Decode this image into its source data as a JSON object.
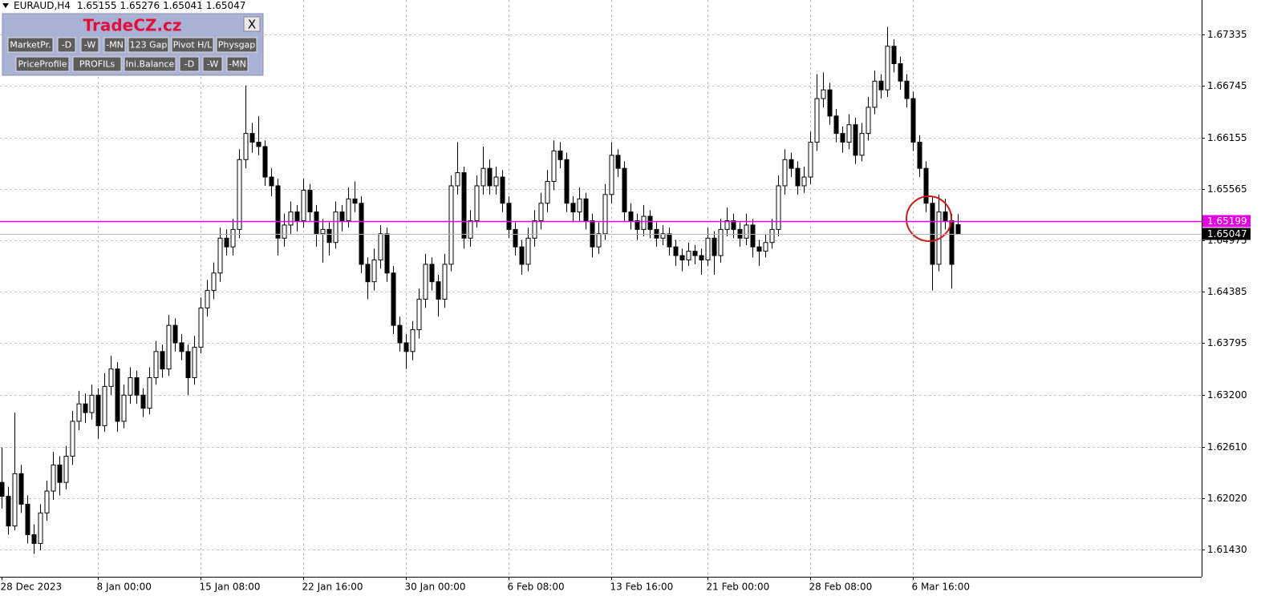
{
  "chart_data": {
    "type": "candlestick",
    "symbol": "EURAUD,H4",
    "ylim": [
      1.61118,
      1.6773
    ],
    "yticks": [
      1.67335,
      1.66745,
      1.66155,
      1.65565,
      1.64975,
      1.64385,
      1.63795,
      {
        "value": 1.632,
        "label": "1.63200"
      },
      {
        "value": 1.6261,
        "label": "1.62610"
      },
      {
        "value": 1.6202,
        "label": "1.62020"
      },
      {
        "value": 1.6143,
        "label": "1.61430"
      }
    ],
    "xticks": [
      {
        "value": 0,
        "label": "28 Dec 2023"
      },
      {
        "value": 15,
        "label": "8 Jan 00:00"
      },
      {
        "value": 31,
        "label": "15 Jan 08:00"
      },
      {
        "value": 47,
        "label": "22 Jan 16:00"
      },
      {
        "value": 63,
        "label": "30 Jan 00:00"
      },
      {
        "value": 79,
        "label": "6 Feb 08:00"
      },
      {
        "value": 95,
        "label": "13 Feb 16:00"
      },
      {
        "value": 110,
        "label": "21 Feb 00:00"
      },
      {
        "value": 126,
        "label": "28 Feb 08:00"
      },
      {
        "value": 142,
        "label": "6 Mar 16:00"
      }
    ],
    "grid": true,
    "up_color": "#ffffff",
    "down_color": "#000000",
    "hline": {
      "value": 1.65199,
      "color": "#e600e6"
    },
    "ohlc": [
      [
        1.622,
        1.626,
        1.619,
        1.6204
      ],
      [
        1.6204,
        1.6215,
        1.616,
        1.617
      ],
      [
        1.617,
        1.63,
        1.6165,
        1.623
      ],
      [
        1.623,
        1.624,
        1.6185,
        1.6195
      ],
      [
        1.6195,
        1.6205,
        1.615,
        1.616
      ],
      [
        1.616,
        1.6172,
        1.6138,
        1.615
      ],
      [
        1.615,
        1.6195,
        1.6142,
        1.6185
      ],
      [
        1.6185,
        1.6222,
        1.6176,
        1.621
      ],
      [
        1.621,
        1.6255,
        1.62,
        1.624
      ],
      [
        1.624,
        1.625,
        1.6205,
        1.622
      ],
      [
        1.622,
        1.6262,
        1.6212,
        1.625
      ],
      [
        1.625,
        1.6302,
        1.624,
        1.629
      ],
      [
        1.629,
        1.6325,
        1.628,
        1.631
      ],
      [
        1.631,
        1.6322,
        1.6288,
        1.63
      ],
      [
        1.63,
        1.6332,
        1.6292,
        1.632
      ],
      [
        1.632,
        1.6328,
        1.627,
        1.6285
      ],
      [
        1.6285,
        1.6345,
        1.6278,
        1.633
      ],
      [
        1.633,
        1.6365,
        1.632,
        1.635
      ],
      [
        1.635,
        1.6358,
        1.6278,
        1.629
      ],
      [
        1.629,
        1.6332,
        1.6282,
        1.632
      ],
      [
        1.632,
        1.6352,
        1.631,
        1.634
      ],
      [
        1.634,
        1.6348,
        1.631,
        1.632
      ],
      [
        1.632,
        1.6328,
        1.6295,
        1.6305
      ],
      [
        1.6305,
        1.6352,
        1.6298,
        1.634
      ],
      [
        1.634,
        1.6382,
        1.6332,
        1.637
      ],
      [
        1.637,
        1.6378,
        1.634,
        1.635
      ],
      [
        1.635,
        1.6412,
        1.6342,
        1.64
      ],
      [
        1.64,
        1.6408,
        1.637,
        1.638
      ],
      [
        1.638,
        1.639,
        1.636,
        1.637
      ],
      [
        1.637,
        1.6378,
        1.632,
        1.634
      ],
      [
        1.634,
        1.6388,
        1.6332,
        1.6375
      ],
      [
        1.6375,
        1.6432,
        1.6368,
        1.642
      ],
      [
        1.642,
        1.6452,
        1.641,
        1.644
      ],
      [
        1.644,
        1.6472,
        1.643,
        1.646
      ],
      [
        1.646,
        1.6512,
        1.645,
        1.65
      ],
      [
        1.65,
        1.651,
        1.648,
        1.649
      ],
      [
        1.649,
        1.6522,
        1.648,
        1.651
      ],
      [
        1.651,
        1.6602,
        1.65,
        1.659
      ],
      [
        1.659,
        1.6675,
        1.658,
        1.662
      ],
      [
        1.662,
        1.6632,
        1.6598,
        1.661
      ],
      [
        1.661,
        1.664,
        1.6595,
        1.6605
      ],
      [
        1.6605,
        1.6612,
        1.656,
        1.657
      ],
      [
        1.657,
        1.658,
        1.6548,
        1.656
      ],
      [
        1.656,
        1.6568,
        1.648,
        1.65
      ],
      [
        1.65,
        1.6528,
        1.649,
        1.6515
      ],
      [
        1.6515,
        1.6542,
        1.6505,
        1.653
      ],
      [
        1.653,
        1.6538,
        1.6508,
        1.652
      ],
      [
        1.652,
        1.6568,
        1.6512,
        1.6555
      ],
      [
        1.6555,
        1.6562,
        1.652,
        1.653
      ],
      [
        1.653,
        1.6538,
        1.649,
        1.6505
      ],
      [
        1.6505,
        1.6522,
        1.6472,
        1.651
      ],
      [
        1.651,
        1.6518,
        1.648,
        1.6495
      ],
      [
        1.6495,
        1.6542,
        1.6488,
        1.653
      ],
      [
        1.653,
        1.6538,
        1.6508,
        1.652
      ],
      [
        1.652,
        1.6558,
        1.6512,
        1.6545
      ],
      [
        1.6545,
        1.6565,
        1.653,
        1.654
      ],
      [
        1.654,
        1.6548,
        1.646,
        1.647
      ],
      [
        1.647,
        1.6478,
        1.643,
        1.645
      ],
      [
        1.645,
        1.6488,
        1.644,
        1.6475
      ],
      [
        1.6475,
        1.6515,
        1.6465,
        1.6505
      ],
      [
        1.6505,
        1.6512,
        1.645,
        1.646
      ],
      [
        1.646,
        1.6468,
        1.639,
        1.64
      ],
      [
        1.64,
        1.641,
        1.637,
        1.638
      ],
      [
        1.638,
        1.639,
        1.635,
        1.637
      ],
      [
        1.637,
        1.6405,
        1.636,
        1.6395
      ],
      [
        1.6395,
        1.6442,
        1.6385,
        1.643
      ],
      [
        1.643,
        1.6482,
        1.642,
        1.647
      ],
      [
        1.647,
        1.6478,
        1.644,
        1.645
      ],
      [
        1.645,
        1.6458,
        1.641,
        1.643
      ],
      [
        1.643,
        1.6482,
        1.642,
        1.647
      ],
      [
        1.647,
        1.6572,
        1.6462,
        1.656
      ],
      [
        1.656,
        1.661,
        1.655,
        1.6575
      ],
      [
        1.6575,
        1.6582,
        1.6488,
        1.65
      ],
      [
        1.65,
        1.6532,
        1.649,
        1.652
      ],
      [
        1.652,
        1.6572,
        1.6512,
        1.656
      ],
      [
        1.656,
        1.6605,
        1.655,
        1.658
      ],
      [
        1.658,
        1.659,
        1.655,
        1.656
      ],
      [
        1.656,
        1.6582,
        1.655,
        1.657
      ],
      [
        1.657,
        1.6578,
        1.653,
        1.654
      ],
      [
        1.654,
        1.6548,
        1.65,
        1.651
      ],
      [
        1.651,
        1.6518,
        1.648,
        1.649
      ],
      [
        1.649,
        1.6498,
        1.6458,
        1.647
      ],
      [
        1.647,
        1.6512,
        1.6462,
        1.65
      ],
      [
        1.65,
        1.6532,
        1.649,
        1.652
      ],
      [
        1.652,
        1.6552,
        1.651,
        1.654
      ],
      [
        1.654,
        1.6578,
        1.653,
        1.6565
      ],
      [
        1.6565,
        1.6612,
        1.6555,
        1.66
      ],
      [
        1.66,
        1.661,
        1.658,
        1.659
      ],
      [
        1.659,
        1.6598,
        1.653,
        1.654
      ],
      [
        1.654,
        1.6548,
        1.6518,
        1.653
      ],
      [
        1.653,
        1.6558,
        1.652,
        1.6545
      ],
      [
        1.6545,
        1.6552,
        1.651,
        1.652
      ],
      [
        1.652,
        1.6528,
        1.6478,
        1.649
      ],
      [
        1.649,
        1.6518,
        1.6482,
        1.6505
      ],
      [
        1.6505,
        1.6562,
        1.6498,
        1.655
      ],
      [
        1.655,
        1.661,
        1.654,
        1.6595
      ],
      [
        1.6595,
        1.6602,
        1.657,
        1.658
      ],
      [
        1.658,
        1.6588,
        1.652,
        1.653
      ],
      [
        1.653,
        1.654,
        1.651,
        1.652
      ],
      [
        1.652,
        1.6528,
        1.6498,
        1.651
      ],
      [
        1.651,
        1.6538,
        1.6502,
        1.6525
      ],
      [
        1.6525,
        1.6532,
        1.65,
        1.651
      ],
      [
        1.651,
        1.6518,
        1.649,
        1.65
      ],
      [
        1.65,
        1.6515,
        1.6492,
        1.6505
      ],
      [
        1.6505,
        1.6512,
        1.648,
        1.649
      ],
      [
        1.649,
        1.6498,
        1.6468,
        1.648
      ],
      [
        1.648,
        1.6488,
        1.6462,
        1.6475
      ],
      [
        1.6475,
        1.6495,
        1.6468,
        1.6485
      ],
      [
        1.6485,
        1.6492,
        1.647,
        1.648
      ],
      [
        1.648,
        1.6488,
        1.6458,
        1.6475
      ],
      [
        1.6475,
        1.6512,
        1.6468,
        1.65
      ],
      [
        1.65,
        1.6508,
        1.6458,
        1.648
      ],
      [
        1.648,
        1.6522,
        1.6472,
        1.651
      ],
      [
        1.651,
        1.6535,
        1.6502,
        1.652
      ],
      [
        1.652,
        1.6528,
        1.65,
        1.651
      ],
      [
        1.651,
        1.6518,
        1.649,
        1.65
      ],
      [
        1.65,
        1.6528,
        1.6492,
        1.6515
      ],
      [
        1.6515,
        1.6522,
        1.6478,
        1.649
      ],
      [
        1.649,
        1.6498,
        1.6468,
        1.6485
      ],
      [
        1.6485,
        1.6505,
        1.6478,
        1.6495
      ],
      [
        1.6495,
        1.6522,
        1.6488,
        1.651
      ],
      [
        1.651,
        1.6572,
        1.6502,
        1.656
      ],
      [
        1.656,
        1.6602,
        1.655,
        1.659
      ],
      [
        1.659,
        1.6598,
        1.657,
        1.658
      ],
      [
        1.658,
        1.6588,
        1.655,
        1.656
      ],
      [
        1.656,
        1.6582,
        1.6552,
        1.657
      ],
      [
        1.657,
        1.6622,
        1.6562,
        1.661
      ],
      [
        1.661,
        1.6688,
        1.66,
        1.666
      ],
      [
        1.666,
        1.669,
        1.665,
        1.667
      ],
      [
        1.667,
        1.6678,
        1.663,
        1.664
      ],
      [
        1.664,
        1.6648,
        1.661,
        1.662
      ],
      [
        1.662,
        1.6628,
        1.6598,
        1.661
      ],
      [
        1.661,
        1.6642,
        1.6602,
        1.663
      ],
      [
        1.663,
        1.6638,
        1.6585,
        1.6595
      ],
      [
        1.6595,
        1.6632,
        1.6588,
        1.662
      ],
      [
        1.662,
        1.6662,
        1.6612,
        1.665
      ],
      [
        1.665,
        1.6692,
        1.6642,
        1.668
      ],
      [
        1.668,
        1.6688,
        1.666,
        1.667
      ],
      [
        1.667,
        1.6742,
        1.6662,
        1.672
      ],
      [
        1.672,
        1.6728,
        1.669,
        1.67
      ],
      [
        1.67,
        1.6708,
        1.667,
        1.668
      ],
      [
        1.668,
        1.6688,
        1.665,
        1.666
      ],
      [
        1.666,
        1.6668,
        1.66,
        1.661
      ],
      [
        1.661,
        1.6618,
        1.657,
        1.658
      ],
      [
        1.658,
        1.6588,
        1.653,
        1.654
      ],
      [
        1.654,
        1.6548,
        1.644,
        1.647
      ],
      [
        1.647,
        1.655,
        1.6462,
        1.653
      ],
      [
        1.653,
        1.6545,
        1.651,
        1.652
      ],
      [
        1.652,
        1.6528,
        1.6442,
        1.647
      ],
      [
        1.65155,
        1.65276,
        1.65041,
        1.65047
      ]
    ]
  },
  "panel": {
    "title": "TradeCZ.cz",
    "close": "X",
    "row1": [
      "MarketPr.",
      "-D",
      "-W",
      "-MN",
      "123 Gap",
      "Pivot H/L",
      "Physgap"
    ],
    "row2": [
      "PriceProfile",
      "PROFILs",
      "Ini.Balance",
      "-D",
      "-W",
      "-MN"
    ]
  }
}
